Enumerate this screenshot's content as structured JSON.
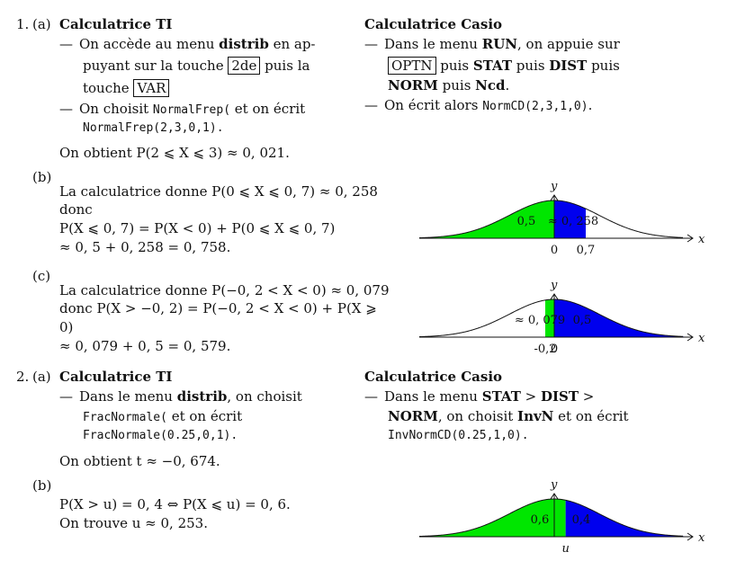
{
  "ex1": {
    "num": "1.",
    "part_a": "(a)",
    "ti_title": "Calculatrice TI",
    "ti_l1a": "On accède au menu ",
    "ti_l1b": "distrib",
    "ti_l1c": " en ap-",
    "ti_l2a": "puyant sur la touche ",
    "ti_key1": "2de",
    "ti_l2b": " puis la",
    "ti_l3a": "touche ",
    "ti_key2": "VAR",
    "ti_l4a": "On choisit ",
    "ti_l4code": "NormalFrep(",
    "ti_l4b": " et on écrit",
    "ti_l5code": "NormalFrep(2,3,0,1).",
    "casio_title": "Calculatrice Casio",
    "casio_l1a": "Dans le menu ",
    "casio_l1b": "RUN",
    "casio_l1c": ", on appuie sur",
    "casio_key": "OPTN",
    "casio_l2a": " puis ",
    "casio_l2b": "STAT",
    "casio_l2c": " puis ",
    "casio_l2d": "DIST",
    "casio_l2e": " puis",
    "casio_l3a": "NORM",
    "casio_l3b": " puis ",
    "casio_l3c": "Ncd",
    "casio_l3d": ".",
    "casio_l4a": "On écrit alors ",
    "casio_l4code": "NormCD(2,3,1,0)",
    "casio_l4b": ".",
    "result": "On obtient P(2 ⩽ X ⩽ 3) ≈ 0, 021.",
    "part_b": "(b)",
    "b_l1": "La calculatrice donne P(0 ⩽ X ⩽ 0, 7) ≈ 0, 258",
    "b_l2": "donc",
    "b_l3": "P(X ⩽ 0, 7) = P(X < 0) + P(0 ⩽ X ⩽ 0, 7)",
    "b_l4": "≈ 0, 5 + 0, 258 = 0, 758.",
    "part_c": "(c)",
    "c_l1": "La calculatrice donne P(−0, 2 < X < 0) ≈ 0, 079",
    "c_l2": "donc P(X > −0, 2) = P(−0, 2 < X < 0) + P(X ⩾",
    "c_l3": "0)",
    "c_l4": "≈ 0, 079 + 0, 5 = 0, 579."
  },
  "ex2": {
    "num": "2.",
    "part_a": "(a)",
    "ti_title": "Calculatrice TI",
    "ti_l1a": "Dans le menu ",
    "ti_l1b": "distrib",
    "ti_l1c": ", on choisit",
    "ti_l2code": "FracNormale(",
    "ti_l2b": " et on écrit",
    "ti_l3code": "FracNormale(0.25,0,1).",
    "casio_title": "Calculatrice Casio",
    "casio_l1a": "Dans le menu ",
    "casio_l1b": "STAT",
    "casio_l1c": " > ",
    "casio_l1d": "DIST",
    "casio_l1e": " >",
    "casio_l2a": "NORM",
    "casio_l2b": ", on choisit ",
    "casio_l2c": "InvN",
    "casio_l2d": " et on écrit",
    "casio_l3code": "InvNormCD(0.25,1,0).",
    "result": "On obtient t ≈ −0, 674.",
    "part_b": "(b)",
    "b_l1": "P(X > u) = 0, 4 ⇔ P(X ⩽ u) = 0, 6.",
    "b_l2": "On trouve u ≈ 0, 253."
  },
  "fig1": {
    "y": "y",
    "x": "x",
    "left_val": "0,5",
    "right_val": "≈ 0, 258",
    "tick0": "0",
    "tick1": "0,7",
    "left_color": "#00e600",
    "right_color": "#0000ee"
  },
  "fig2": {
    "y": "y",
    "x": "x",
    "left_val": "≈ 0, 079",
    "right_val": "0,5",
    "tickm": "-0,2",
    "tick0": "0",
    "left_color": "#00e600",
    "right_color": "#0000ee"
  },
  "fig3": {
    "y": "y",
    "x": "x",
    "left_val": "0,6",
    "right_val": "0,4",
    "ticku": "u",
    "left_color": "#00e600",
    "right_color": "#0000ee"
  }
}
